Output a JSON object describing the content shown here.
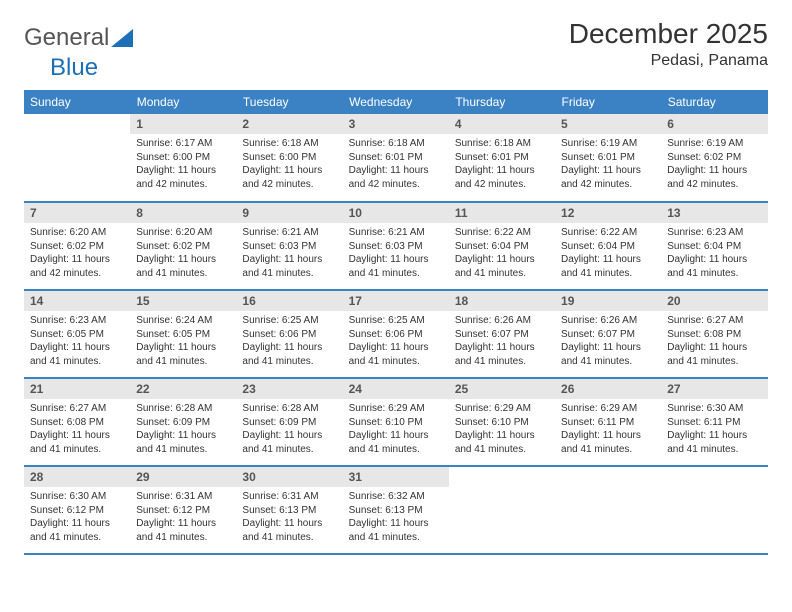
{
  "brand": {
    "part1": "General",
    "part2": "Blue"
  },
  "colors": {
    "brand_blue": "#1d6fb8",
    "header_blue": "#3b82c4",
    "daynum_bg": "#e7e7e7",
    "text_dark": "#333333",
    "text_muted": "#555555",
    "white": "#ffffff",
    "border_blue": "#3b82c4"
  },
  "title": "December 2025",
  "subtitle": "Pedasi, Panama",
  "weekdays": [
    "Sunday",
    "Monday",
    "Tuesday",
    "Wednesday",
    "Thursday",
    "Friday",
    "Saturday"
  ],
  "font": {
    "title_size": 28,
    "subtitle_size": 16,
    "th_size": 12,
    "daynum_size": 12,
    "body_size": 10
  },
  "start_offset": 1,
  "days": [
    {
      "n": 1,
      "sunrise": "6:17 AM",
      "sunset": "6:00 PM",
      "daylight": "11 hours and 42 minutes."
    },
    {
      "n": 2,
      "sunrise": "6:18 AM",
      "sunset": "6:00 PM",
      "daylight": "11 hours and 42 minutes."
    },
    {
      "n": 3,
      "sunrise": "6:18 AM",
      "sunset": "6:01 PM",
      "daylight": "11 hours and 42 minutes."
    },
    {
      "n": 4,
      "sunrise": "6:18 AM",
      "sunset": "6:01 PM",
      "daylight": "11 hours and 42 minutes."
    },
    {
      "n": 5,
      "sunrise": "6:19 AM",
      "sunset": "6:01 PM",
      "daylight": "11 hours and 42 minutes."
    },
    {
      "n": 6,
      "sunrise": "6:19 AM",
      "sunset": "6:02 PM",
      "daylight": "11 hours and 42 minutes."
    },
    {
      "n": 7,
      "sunrise": "6:20 AM",
      "sunset": "6:02 PM",
      "daylight": "11 hours and 42 minutes."
    },
    {
      "n": 8,
      "sunrise": "6:20 AM",
      "sunset": "6:02 PM",
      "daylight": "11 hours and 41 minutes."
    },
    {
      "n": 9,
      "sunrise": "6:21 AM",
      "sunset": "6:03 PM",
      "daylight": "11 hours and 41 minutes."
    },
    {
      "n": 10,
      "sunrise": "6:21 AM",
      "sunset": "6:03 PM",
      "daylight": "11 hours and 41 minutes."
    },
    {
      "n": 11,
      "sunrise": "6:22 AM",
      "sunset": "6:04 PM",
      "daylight": "11 hours and 41 minutes."
    },
    {
      "n": 12,
      "sunrise": "6:22 AM",
      "sunset": "6:04 PM",
      "daylight": "11 hours and 41 minutes."
    },
    {
      "n": 13,
      "sunrise": "6:23 AM",
      "sunset": "6:04 PM",
      "daylight": "11 hours and 41 minutes."
    },
    {
      "n": 14,
      "sunrise": "6:23 AM",
      "sunset": "6:05 PM",
      "daylight": "11 hours and 41 minutes."
    },
    {
      "n": 15,
      "sunrise": "6:24 AM",
      "sunset": "6:05 PM",
      "daylight": "11 hours and 41 minutes."
    },
    {
      "n": 16,
      "sunrise": "6:25 AM",
      "sunset": "6:06 PM",
      "daylight": "11 hours and 41 minutes."
    },
    {
      "n": 17,
      "sunrise": "6:25 AM",
      "sunset": "6:06 PM",
      "daylight": "11 hours and 41 minutes."
    },
    {
      "n": 18,
      "sunrise": "6:26 AM",
      "sunset": "6:07 PM",
      "daylight": "11 hours and 41 minutes."
    },
    {
      "n": 19,
      "sunrise": "6:26 AM",
      "sunset": "6:07 PM",
      "daylight": "11 hours and 41 minutes."
    },
    {
      "n": 20,
      "sunrise": "6:27 AM",
      "sunset": "6:08 PM",
      "daylight": "11 hours and 41 minutes."
    },
    {
      "n": 21,
      "sunrise": "6:27 AM",
      "sunset": "6:08 PM",
      "daylight": "11 hours and 41 minutes."
    },
    {
      "n": 22,
      "sunrise": "6:28 AM",
      "sunset": "6:09 PM",
      "daylight": "11 hours and 41 minutes."
    },
    {
      "n": 23,
      "sunrise": "6:28 AM",
      "sunset": "6:09 PM",
      "daylight": "11 hours and 41 minutes."
    },
    {
      "n": 24,
      "sunrise": "6:29 AM",
      "sunset": "6:10 PM",
      "daylight": "11 hours and 41 minutes."
    },
    {
      "n": 25,
      "sunrise": "6:29 AM",
      "sunset": "6:10 PM",
      "daylight": "11 hours and 41 minutes."
    },
    {
      "n": 26,
      "sunrise": "6:29 AM",
      "sunset": "6:11 PM",
      "daylight": "11 hours and 41 minutes."
    },
    {
      "n": 27,
      "sunrise": "6:30 AM",
      "sunset": "6:11 PM",
      "daylight": "11 hours and 41 minutes."
    },
    {
      "n": 28,
      "sunrise": "6:30 AM",
      "sunset": "6:12 PM",
      "daylight": "11 hours and 41 minutes."
    },
    {
      "n": 29,
      "sunrise": "6:31 AM",
      "sunset": "6:12 PM",
      "daylight": "11 hours and 41 minutes."
    },
    {
      "n": 30,
      "sunrise": "6:31 AM",
      "sunset": "6:13 PM",
      "daylight": "11 hours and 41 minutes."
    },
    {
      "n": 31,
      "sunrise": "6:32 AM",
      "sunset": "6:13 PM",
      "daylight": "11 hours and 41 minutes."
    }
  ],
  "labels": {
    "sunrise": "Sunrise:",
    "sunset": "Sunset:",
    "daylight": "Daylight:"
  }
}
